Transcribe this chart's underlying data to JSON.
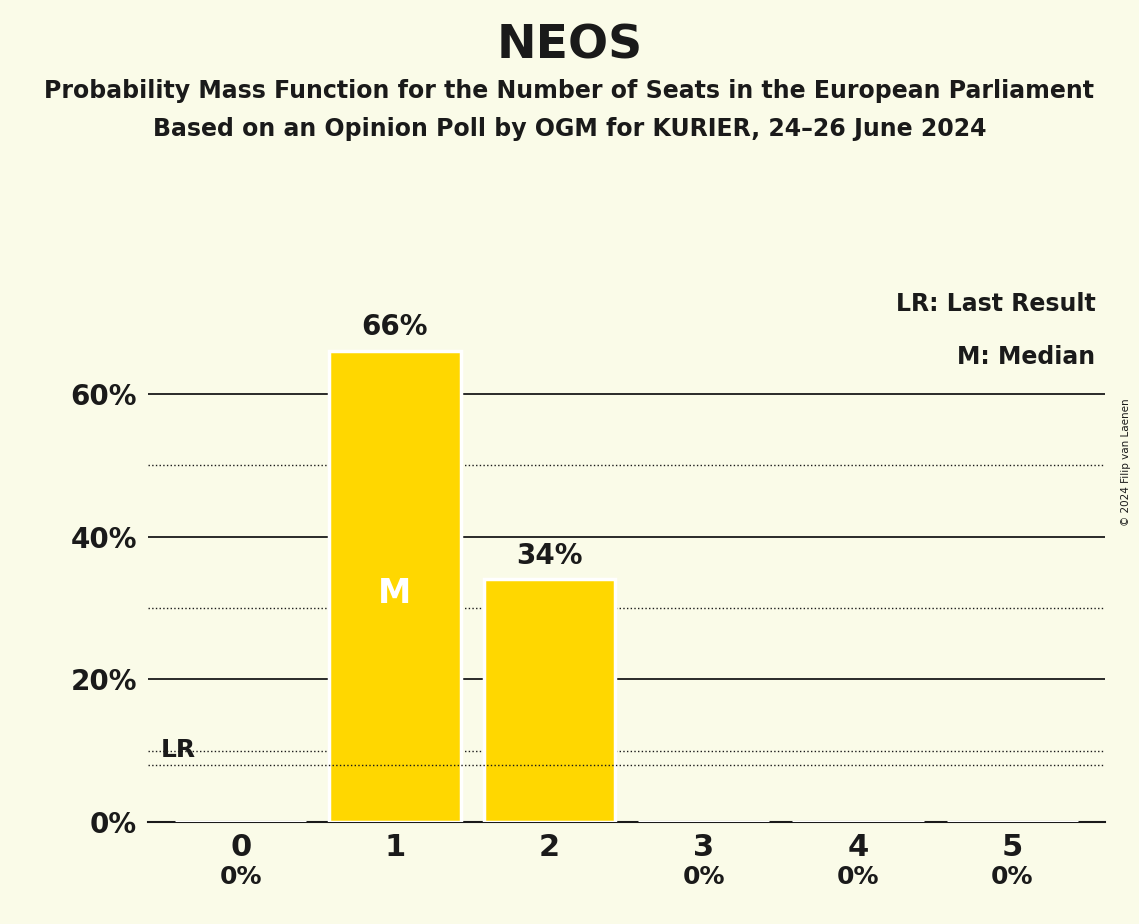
{
  "title": "NEOS",
  "subtitle1": "Probability Mass Function for the Number of Seats in the European Parliament",
  "subtitle2": "Based on an Opinion Poll by OGM for KURIER, 24–26 June 2024",
  "categories": [
    0,
    1,
    2,
    3,
    4,
    5
  ],
  "values": [
    0.0,
    0.66,
    0.34,
    0.0,
    0.0,
    0.0
  ],
  "bar_color": "#FFD700",
  "background_color": "#FAFBE8",
  "text_color": "#1a1a1a",
  "median_bar": 1,
  "last_result_line": 0.08,
  "last_result_label": "LR",
  "median_label": "M",
  "legend_lr": "LR: Last Result",
  "legend_m": "M: Median",
  "ylim": [
    0,
    0.75
  ],
  "copyright": "© 2024 Filip van Laenen",
  "value_labels": [
    "0%",
    "66%",
    "34%",
    "0%",
    "0%",
    "0%"
  ],
  "solid_yticks": [
    0.0,
    0.2,
    0.4,
    0.6
  ],
  "solid_labels": [
    "0%",
    "20%",
    "40%",
    "60%"
  ],
  "dotted_yticks": [
    0.1,
    0.3,
    0.5
  ],
  "title_fontsize": 34,
  "subtitle_fontsize": 17,
  "tick_fontsize": 22,
  "label_fontsize": 20,
  "legend_fontsize": 17,
  "bar_width": 0.85
}
